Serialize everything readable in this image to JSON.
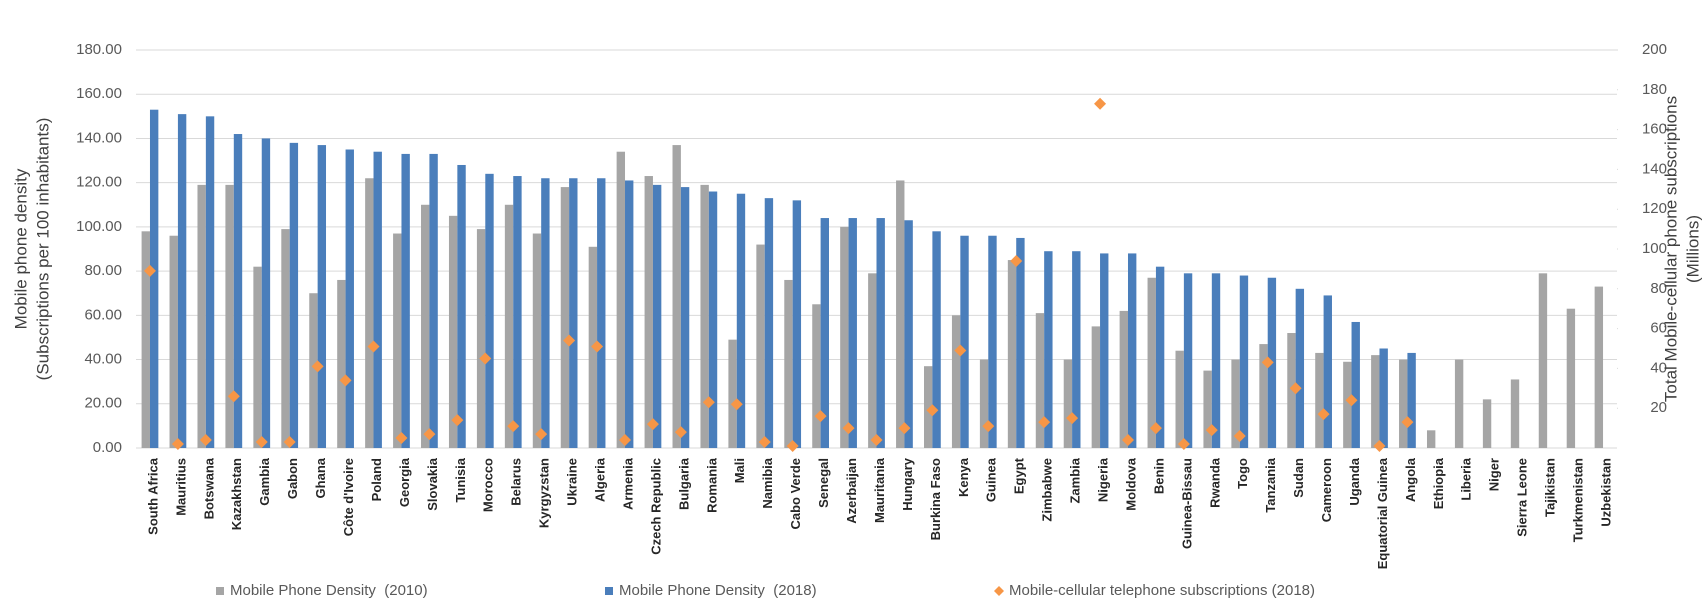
{
  "chart_data": {
    "type": "bar",
    "categories": [
      "South Africa",
      "Mauritius",
      "Botswana",
      "Kazakhstan",
      "Gambia",
      "Gabon",
      "Ghana",
      "Côte d'Ivoire",
      "Poland",
      "Georgia",
      "Slovakia",
      "Tunisia",
      "Morocco",
      "Belarus",
      "Kyrgyzstan",
      "Ukraine",
      "Algeria",
      "Armenia",
      "Czech Republic",
      "Bulgaria",
      "Romania",
      "Mali",
      "Namibia",
      "Cabo Verde",
      "Senegal",
      "Azerbaijan",
      "Mauritania",
      "Hungary",
      "Burkina Faso",
      "Kenya",
      "Guinea",
      "Egypt",
      "Zimbabwe",
      "Zambia",
      "Nigeria",
      "Moldova",
      "Benin",
      "Guinea-Bissau",
      "Rwanda",
      "Togo",
      "Tanzania",
      "Sudan",
      "Cameroon",
      "Uganda",
      "Equatorial Guinea",
      "Angola",
      "Ethiopia",
      "Liberia",
      "Niger",
      "Sierra Leone",
      "Tajikistan",
      "Turkmenistan",
      "Uzbekistan"
    ],
    "series": [
      {
        "name": "Mobile Phone Density  (2010)",
        "color": "#a5a5a5",
        "type": "bar",
        "values": [
          98,
          96,
          119,
          119,
          82,
          99,
          70,
          76,
          122,
          97,
          110,
          105,
          99,
          110,
          97,
          118,
          91,
          134,
          123,
          137,
          119,
          49,
          92,
          76,
          65,
          100,
          79,
          121,
          37,
          60,
          40,
          85,
          61,
          40,
          55,
          62,
          77,
          44,
          35,
          40,
          47,
          52,
          43,
          39,
          42,
          40,
          8,
          40,
          22,
          31,
          79,
          63,
          73
        ]
      },
      {
        "name": "Mobile Phone Density  (2018)",
        "color": "#4a7ebb",
        "type": "bar",
        "values": [
          153,
          151,
          150,
          142,
          140,
          138,
          137,
          135,
          134,
          133,
          133,
          128,
          124,
          123,
          122,
          122,
          122,
          121,
          119,
          118,
          116,
          115,
          113,
          112,
          104,
          104,
          104,
          103,
          98,
          96,
          96,
          95,
          89,
          89,
          88,
          88,
          82,
          79,
          79,
          78,
          77,
          72,
          69,
          57,
          45,
          43,
          null,
          null,
          null,
          null,
          null,
          null,
          null
        ]
      },
      {
        "name": "Mobile-cellular telephone subscriptions (2018)",
        "color": "#f79646",
        "type": "scatter",
        "axis": "y2",
        "values": [
          89,
          2,
          4,
          26,
          3,
          3,
          41,
          34,
          51,
          5,
          7,
          14,
          45,
          11,
          7,
          54,
          51,
          4,
          12,
          8,
          23,
          22,
          3,
          1,
          16,
          10,
          4,
          10,
          19,
          49,
          11,
          94,
          13,
          15,
          173,
          4,
          10,
          2,
          9,
          6,
          43,
          30,
          17,
          24,
          1,
          13,
          null,
          null,
          null,
          null,
          null,
          null,
          null
        ]
      }
    ],
    "ylabel": [
      "Mobile phone density",
      "(Subscriptions per 100 inhabitants)"
    ],
    "y2label": [
      "Total Mobile-cellular phone subscriptions",
      "(Millions)"
    ],
    "ylim": [
      0,
      180
    ],
    "yticks": [
      {
        "value": 0,
        "label": "0.00"
      },
      {
        "value": 20,
        "label": "20.00"
      },
      {
        "value": 40,
        "label": "40.00"
      },
      {
        "value": 60,
        "label": "60.00"
      },
      {
        "value": 80,
        "label": "80.00"
      },
      {
        "value": 100,
        "label": "100.00"
      },
      {
        "value": 120,
        "label": "120.00"
      },
      {
        "value": 140,
        "label": "140.00"
      },
      {
        "value": 160,
        "label": "160.00"
      },
      {
        "value": 180,
        "label": "180.00"
      }
    ],
    "y2lim": [
      0,
      200
    ],
    "y2ticks": [
      20,
      40,
      60,
      80,
      100,
      120,
      140,
      160,
      180,
      200
    ],
    "grid": true,
    "legend": "bottom"
  }
}
